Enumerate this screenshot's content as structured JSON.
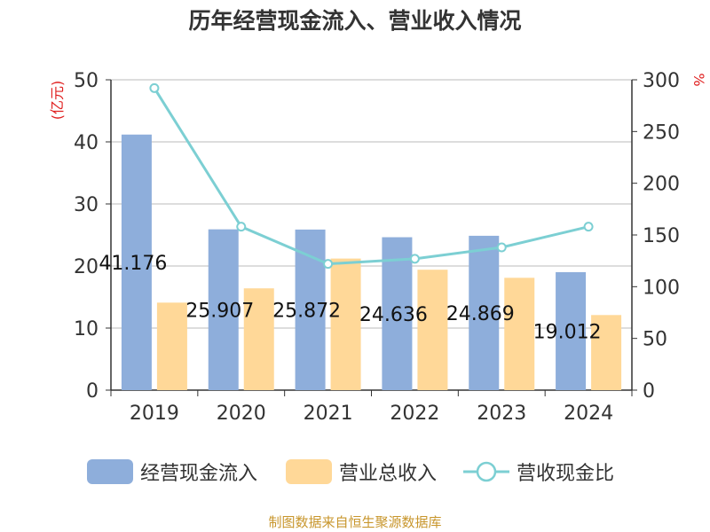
{
  "title": "历年经营现金流入、营业收入情况",
  "source": "制图数据来自恒生聚源数据库",
  "colors": {
    "cash": "#8eaedb",
    "revenue": "#ffd898",
    "ratio": "#7ccfd3",
    "unit": "#e02020",
    "source": "#c8962c",
    "grid": "#bbbbbb",
    "axis": "#333333"
  },
  "chart_data": {
    "type": "bar",
    "categories": [
      "2019",
      "2020",
      "2021",
      "2022",
      "2023",
      "2024"
    ],
    "series": [
      {
        "name": "经营现金流入",
        "type": "bar",
        "axis": "left",
        "values": [
          41.176,
          25.907,
          25.872,
          24.636,
          24.869,
          19.012
        ]
      },
      {
        "name": "营业总收入",
        "type": "bar",
        "axis": "left",
        "values": [
          14.1,
          16.4,
          21.2,
          19.4,
          18.1,
          12.1
        ]
      },
      {
        "name": "营收现金比",
        "type": "line",
        "axis": "right",
        "values": [
          292,
          158,
          122,
          127,
          138,
          158
        ]
      }
    ],
    "data_labels": [
      "41.176",
      "25.907",
      "25.872",
      "24.636",
      "24.869",
      "19.012"
    ],
    "ylabel": "(亿元)",
    "y2label": "%",
    "ylim": [
      0,
      50
    ],
    "y2lim": [
      0,
      300
    ],
    "yticks": [
      0,
      10,
      20,
      30,
      40,
      50
    ],
    "y2ticks": [
      0,
      50,
      100,
      150,
      200,
      250,
      300
    ],
    "grid": true,
    "legend": "bottom"
  }
}
